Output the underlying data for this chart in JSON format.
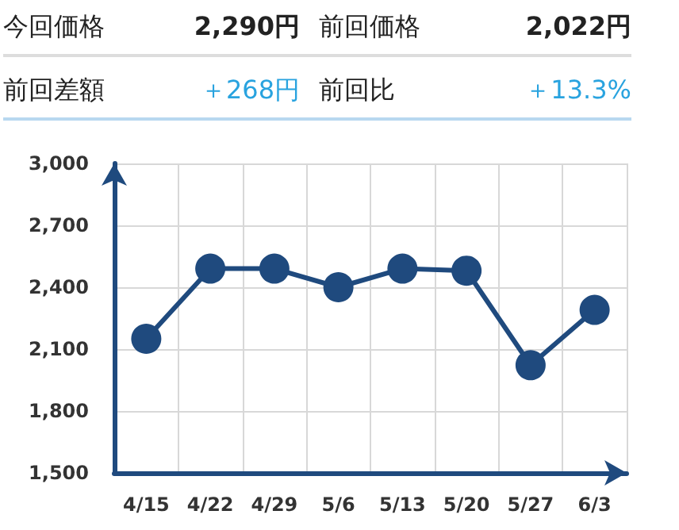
{
  "chart_data": {
    "type": "line",
    "annotations": [
      "今回価格",
      "2,290円",
      "前回価格",
      "2,022円",
      "前回差額",
      "＋268円",
      "前回比",
      "＋13.3%"
    ],
    "categories": [
      "4/15",
      "4/22",
      "4/29",
      "5/6",
      "5/13",
      "5/20",
      "5/27",
      "6/3"
    ],
    "series": [
      {
        "color": "#1f4a7e",
        "values": [
          2150,
          2490,
          2490,
          2400,
          2490,
          2480,
          2022,
          2290
        ]
      }
    ],
    "ylim": [
      1500,
      3000
    ],
    "yticks": [
      {
        "value": 1500,
        "label": "1,500"
      },
      {
        "value": 1800,
        "label": "1,800"
      },
      {
        "value": 2100,
        "label": "2,100"
      },
      {
        "value": 2400,
        "label": "2,400"
      },
      {
        "value": 2700,
        "label": "2,700"
      },
      {
        "value": 3000,
        "label": "3,000"
      }
    ],
    "grid": true,
    "marker": "circle",
    "line_style": "solid"
  }
}
